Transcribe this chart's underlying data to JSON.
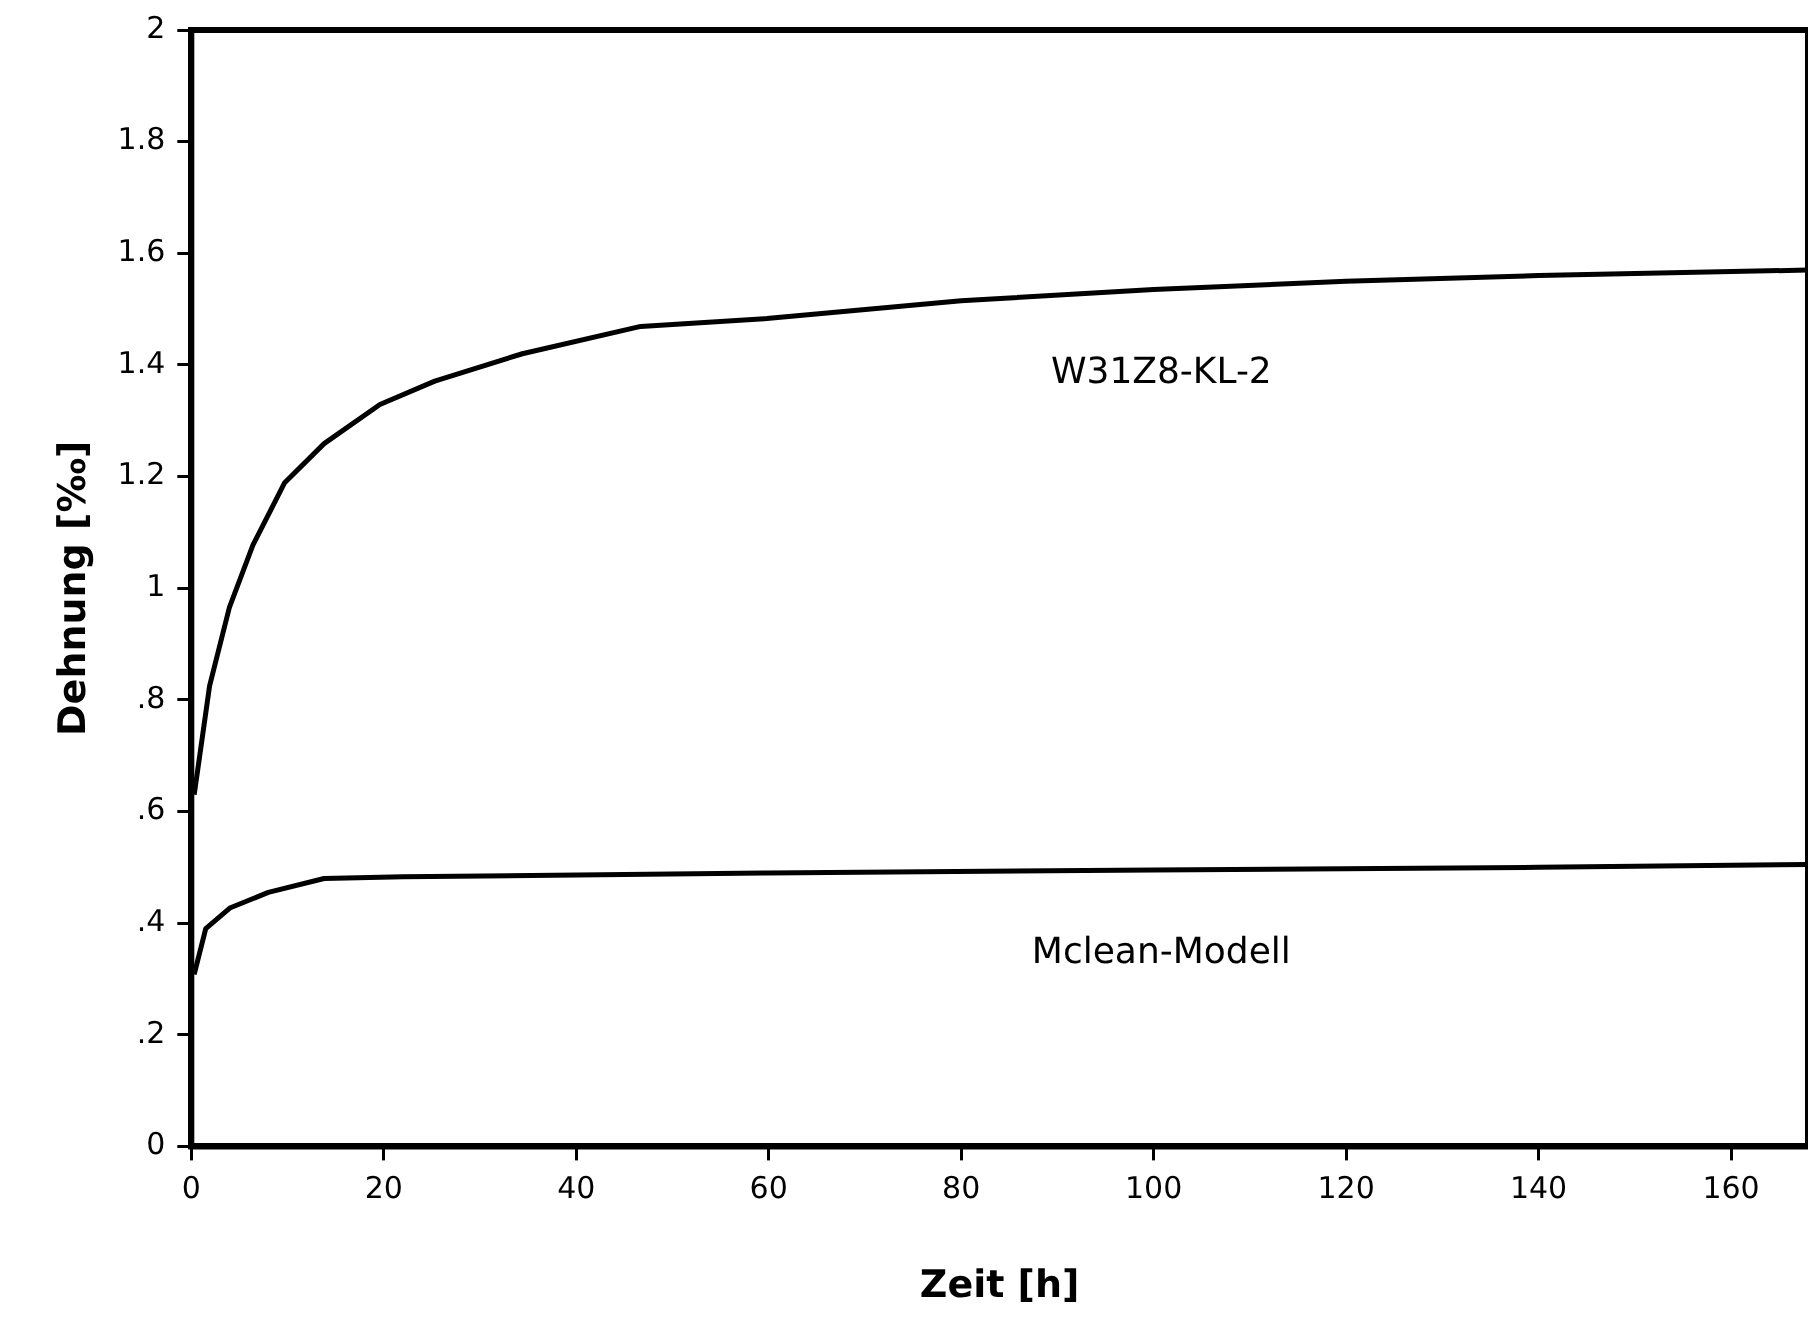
{
  "chart_data": {
    "type": "line",
    "xlabel": "Zeit [h]",
    "ylabel": "Dehnung [‰]",
    "xlim": [
      0,
      168
    ],
    "xticks": [
      0,
      20,
      40,
      60,
      80,
      100,
      120,
      140,
      160
    ],
    "ylim": [
      0,
      2
    ],
    "yticks": [
      0,
      {
        "value": 0.2,
        "label": ".2"
      },
      {
        "value": 0.4,
        "label": ".4"
      },
      {
        "value": 0.6,
        "label": ".6"
      },
      {
        "value": 0.8,
        "label": ".8"
      },
      1,
      1.2,
      1.4,
      1.6,
      1.8,
      2
    ],
    "grid": false,
    "legend": false,
    "marker": "none",
    "line_style": "solid",
    "series": [
      {
        "name": "W31Z8-KL-2",
        "color": "#000000",
        "x": [
          0.3,
          1.9,
          3.95,
          6.4,
          9.7,
          13.8,
          19.6,
          25.3,
          34.4,
          46.7,
          59.8,
          80,
          100,
          120,
          140,
          168
        ],
        "values": [
          0.63,
          0.825,
          0.965,
          1.077,
          1.189,
          1.259,
          1.329,
          1.371,
          1.42,
          1.469,
          1.483,
          1.515,
          1.535,
          1.55,
          1.56,
          1.57
        ]
      },
      {
        "name": "Mclean-Modell",
        "color": "#000000",
        "x": [
          0.3,
          1.5,
          4,
          8,
          13.8,
          22,
          59.8,
          100,
          140,
          168
        ],
        "values": [
          0.308,
          0.39,
          0.427,
          0.455,
          0.48,
          0.483,
          0.49,
          0.495,
          0.5,
          0.505
        ]
      }
    ]
  }
}
